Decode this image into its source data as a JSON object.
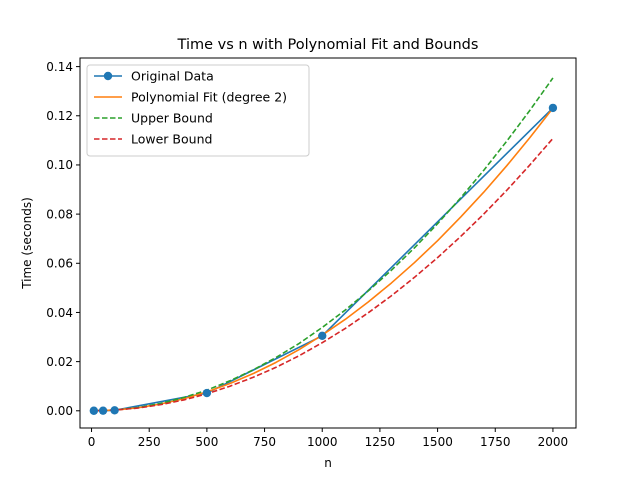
{
  "chart_data": {
    "type": "line",
    "title": "Time vs n with Polynomial Fit and Bounds",
    "xlabel": "n",
    "ylabel": "Time (seconds)",
    "xlim": [
      -50,
      2100
    ],
    "ylim": [
      -0.007,
      0.1435
    ],
    "xticks": [
      0,
      250,
      500,
      750,
      1000,
      1250,
      1500,
      1750,
      2000
    ],
    "xtick_labels": [
      "0",
      "250",
      "500",
      "750",
      "1000",
      "1250",
      "1500",
      "1750",
      "2000"
    ],
    "yticks": [
      0.0,
      0.02,
      0.04,
      0.06,
      0.08,
      0.1,
      0.12,
      0.14
    ],
    "ytick_labels": [
      "0.00",
      "0.02",
      "0.04",
      "0.06",
      "0.08",
      "0.10",
      "0.12",
      "0.14"
    ],
    "grid": false,
    "legend_position": "top-left",
    "series": [
      {
        "name": "Original Data",
        "style": "solid",
        "marker": "circle",
        "color": "#1f77b4",
        "x": [
          10,
          50,
          100,
          500,
          1000,
          2000
        ],
        "y": [
          2e-05,
          5e-05,
          0.0002,
          0.0072,
          0.0305,
          0.1232
        ]
      },
      {
        "name": "Polynomial Fit (degree 2)",
        "style": "solid",
        "color": "#ff7f0e",
        "x": [
          10,
          100,
          200,
          300,
          400,
          500,
          600,
          700,
          800,
          900,
          1000,
          1100,
          1200,
          1300,
          1400,
          1500,
          1600,
          1700,
          1800,
          1900,
          2000
        ],
        "y": [
          0.0,
          0.0003,
          0.0012,
          0.0028,
          0.0049,
          0.0077,
          0.0111,
          0.0151,
          0.0197,
          0.0249,
          0.0308,
          0.0372,
          0.0443,
          0.052,
          0.0603,
          0.0692,
          0.0788,
          0.0889,
          0.0997,
          0.1111,
          0.1231
        ]
      },
      {
        "name": "Upper Bound",
        "style": "dashed",
        "color": "#2ca02c",
        "x": [
          10,
          100,
          200,
          300,
          400,
          500,
          600,
          700,
          800,
          900,
          1000,
          1100,
          1200,
          1300,
          1400,
          1500,
          1600,
          1700,
          1800,
          1900,
          2000
        ],
        "y": [
          0.0,
          0.0003,
          0.0013,
          0.003,
          0.0054,
          0.0084,
          0.0122,
          0.0166,
          0.0217,
          0.0274,
          0.0339,
          0.041,
          0.0488,
          0.0572,
          0.0663,
          0.0761,
          0.0866,
          0.0978,
          0.1097,
          0.1222,
          0.1354
        ]
      },
      {
        "name": "Lower Bound",
        "style": "dashed",
        "color": "#d62728",
        "x": [
          10,
          100,
          200,
          300,
          400,
          500,
          600,
          700,
          800,
          900,
          1000,
          1100,
          1200,
          1300,
          1400,
          1500,
          1600,
          1700,
          1800,
          1900,
          2000
        ],
        "y": [
          0.0,
          0.0003,
          0.0011,
          0.0025,
          0.0044,
          0.0069,
          0.01,
          0.0136,
          0.0177,
          0.0224,
          0.0277,
          0.0335,
          0.0399,
          0.0468,
          0.0543,
          0.0623,
          0.0709,
          0.08,
          0.0897,
          0.1,
          0.1108
        ]
      }
    ]
  }
}
